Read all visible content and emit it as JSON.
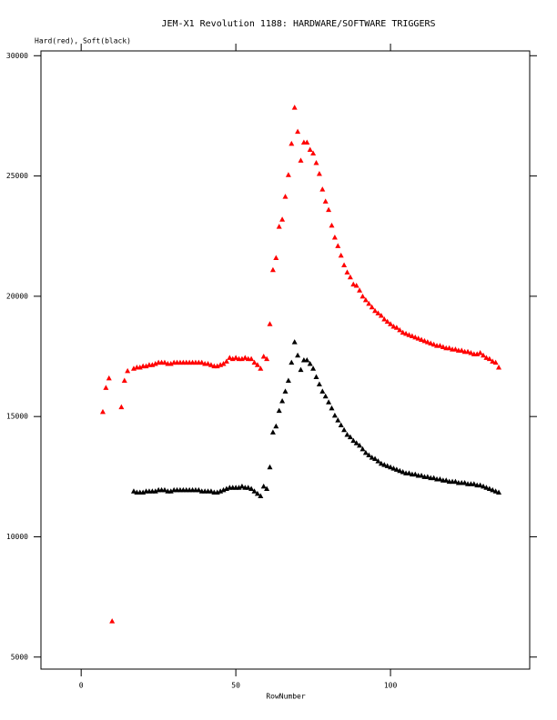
{
  "chart_data": {
    "type": "scatter",
    "title": "JEM-X1 Revolution 1188: HARDWARE/SOFTWARE TRIGGERS",
    "y_label": "Hard(red), Soft(black)",
    "x_label": "RowNumber",
    "xlim": [
      -13,
      145
    ],
    "ylim": [
      4500,
      30200
    ],
    "xticks": [
      0,
      50,
      100
    ],
    "yticks": [
      5000,
      10000,
      15000,
      20000,
      25000,
      30000
    ],
    "marker": "triangle",
    "series": [
      {
        "name": "Hard",
        "color": "#ff0000",
        "x": [
          7,
          8,
          9,
          10,
          13,
          14,
          15,
          17,
          18,
          19,
          20,
          21,
          22,
          23,
          24,
          25,
          26,
          27,
          28,
          29,
          30,
          31,
          32,
          33,
          34,
          35,
          36,
          37,
          38,
          39,
          40,
          41,
          42,
          43,
          44,
          45,
          46,
          47,
          48,
          49,
          50,
          51,
          52,
          53,
          54,
          55,
          56,
          57,
          58,
          59,
          60,
          61,
          62,
          63,
          64,
          65,
          66,
          67,
          68,
          69,
          70,
          71,
          72,
          73,
          74,
          75,
          76,
          77,
          78,
          79,
          80,
          81,
          82,
          83,
          84,
          85,
          86,
          87,
          88,
          89,
          90,
          91,
          92,
          93,
          94,
          95,
          96,
          97,
          98,
          99,
          100,
          101,
          102,
          103,
          104,
          105,
          106,
          107,
          108,
          109,
          110,
          111,
          112,
          113,
          114,
          115,
          116,
          117,
          118,
          119,
          120,
          121,
          122,
          123,
          124,
          125,
          126,
          127,
          128,
          129,
          130,
          131,
          132,
          133,
          134,
          135
        ],
        "values": [
          15200,
          16200,
          16600,
          6500,
          15400,
          16500,
          16900,
          17000,
          17050,
          17050,
          17100,
          17100,
          17150,
          17150,
          17200,
          17250,
          17250,
          17250,
          17200,
          17200,
          17250,
          17250,
          17250,
          17250,
          17250,
          17250,
          17250,
          17250,
          17250,
          17250,
          17200,
          17200,
          17150,
          17100,
          17100,
          17150,
          17200,
          17300,
          17450,
          17400,
          17450,
          17400,
          17400,
          17450,
          17400,
          17400,
          17250,
          17150,
          17000,
          17500,
          17400,
          18850,
          21100,
          21600,
          22900,
          23200,
          24150,
          25050,
          26350,
          27850,
          26850,
          25650,
          26400,
          26400,
          26100,
          25950,
          25550,
          25100,
          24450,
          23950,
          23600,
          22950,
          22450,
          22100,
          21700,
          21300,
          21000,
          20800,
          20500,
          20450,
          20250,
          20000,
          19850,
          19700,
          19550,
          19400,
          19300,
          19200,
          19050,
          18950,
          18850,
          18750,
          18700,
          18600,
          18500,
          18450,
          18400,
          18350,
          18300,
          18250,
          18200,
          18150,
          18100,
          18050,
          18000,
          17950,
          17950,
          17900,
          17850,
          17850,
          17800,
          17800,
          17750,
          17750,
          17700,
          17700,
          17650,
          17600,
          17600,
          17650,
          17550,
          17450,
          17400,
          17300,
          17250,
          17050
        ]
      },
      {
        "name": "Soft",
        "color": "#000000",
        "x": [
          17,
          18,
          19,
          20,
          21,
          22,
          23,
          24,
          25,
          26,
          27,
          28,
          29,
          30,
          31,
          32,
          33,
          34,
          35,
          36,
          37,
          38,
          39,
          40,
          41,
          42,
          43,
          44,
          45,
          46,
          47,
          48,
          49,
          50,
          51,
          52,
          53,
          54,
          55,
          56,
          57,
          58,
          59,
          60,
          61,
          62,
          63,
          64,
          65,
          66,
          67,
          68,
          69,
          70,
          71,
          72,
          73,
          74,
          75,
          76,
          77,
          78,
          79,
          80,
          81,
          82,
          83,
          84,
          85,
          86,
          87,
          88,
          89,
          90,
          91,
          92,
          93,
          94,
          95,
          96,
          97,
          98,
          99,
          100,
          101,
          102,
          103,
          104,
          105,
          106,
          107,
          108,
          109,
          110,
          111,
          112,
          113,
          114,
          115,
          116,
          117,
          118,
          119,
          120,
          121,
          122,
          123,
          124,
          125,
          126,
          127,
          128,
          129,
          130,
          131,
          132,
          133,
          134,
          135
        ],
        "values": [
          11900,
          11850,
          11850,
          11850,
          11900,
          11900,
          11900,
          11900,
          11950,
          11950,
          11950,
          11900,
          11900,
          11950,
          11950,
          11950,
          11950,
          11950,
          11950,
          11950,
          11950,
          11950,
          11900,
          11900,
          11900,
          11900,
          11850,
          11850,
          11900,
          11950,
          12000,
          12050,
          12050,
          12050,
          12050,
          12100,
          12050,
          12050,
          12000,
          11900,
          11800,
          11700,
          12100,
          12000,
          12900,
          14350,
          14600,
          15250,
          15650,
          16050,
          16500,
          17250,
          18100,
          17550,
          16950,
          17350,
          17350,
          17200,
          17000,
          16650,
          16350,
          16050,
          15850,
          15600,
          15350,
          15050,
          14850,
          14650,
          14450,
          14250,
          14150,
          14000,
          13900,
          13800,
          13650,
          13500,
          13400,
          13300,
          13250,
          13150,
          13050,
          13000,
          12950,
          12900,
          12850,
          12800,
          12750,
          12700,
          12650,
          12650,
          12600,
          12600,
          12550,
          12550,
          12500,
          12500,
          12450,
          12450,
          12400,
          12400,
          12350,
          12350,
          12300,
          12300,
          12300,
          12250,
          12250,
          12250,
          12200,
          12200,
          12200,
          12150,
          12150,
          12100,
          12050,
          12000,
          11950,
          11900,
          11850
        ]
      }
    ]
  }
}
